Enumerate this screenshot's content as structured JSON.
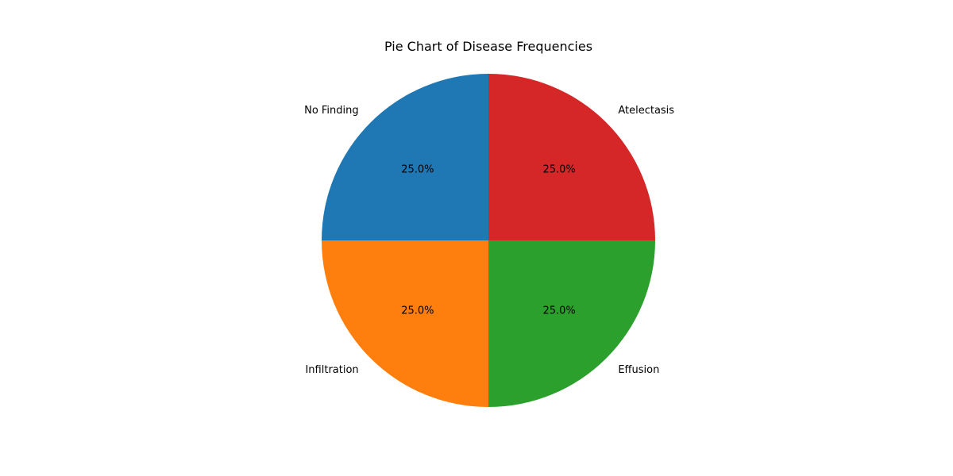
{
  "chart_data": {
    "type": "pie",
    "title": "Pie Chart of Disease Frequencies",
    "start_angle_deg": 90,
    "direction": "counterclockwise",
    "slices": [
      {
        "label": "No Finding",
        "value": 25.0,
        "pct_label": "25.0%",
        "color": "#1f77b4"
      },
      {
        "label": "Infiltration",
        "value": 25.0,
        "pct_label": "25.0%",
        "color": "#ff7f0e"
      },
      {
        "label": "Effusion",
        "value": 25.0,
        "pct_label": "25.0%",
        "color": "#2ca02c"
      },
      {
        "label": "Atelectasis",
        "value": 25.0,
        "pct_label": "25.0%",
        "color": "#d62728"
      }
    ]
  }
}
